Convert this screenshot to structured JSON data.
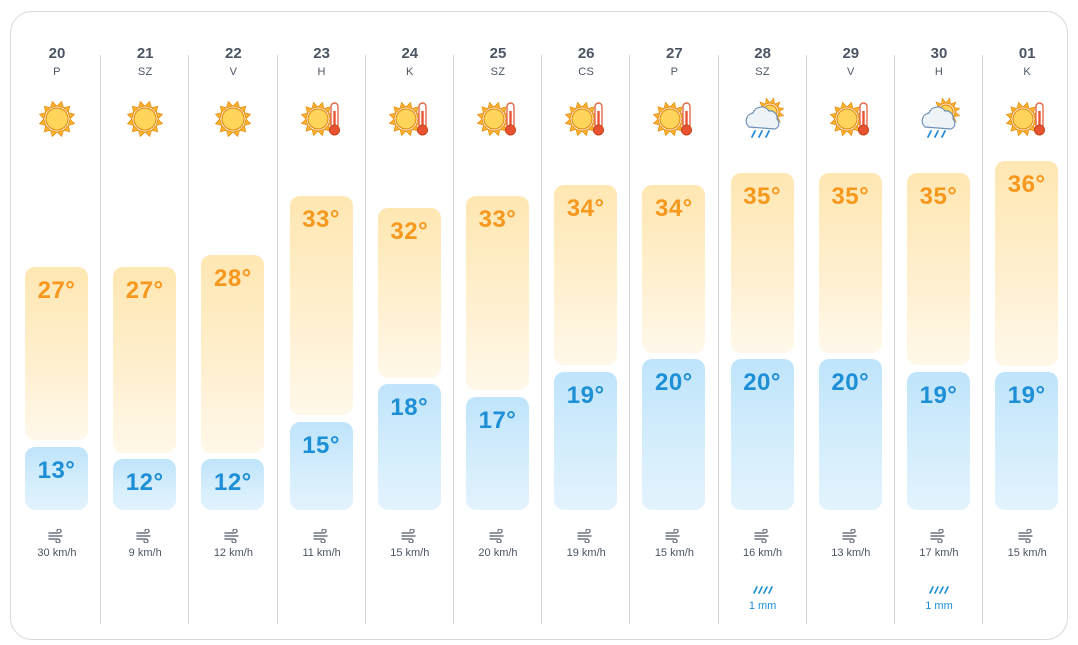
{
  "days": [
    {
      "day": "20",
      "name": "P",
      "icon": "sun-icon",
      "high": "27°",
      "high_val": 27,
      "low": "13°",
      "low_val": 13,
      "wind": "30 km/h",
      "rain": ""
    },
    {
      "day": "21",
      "name": "SZ",
      "icon": "sun-icon",
      "high": "27°",
      "high_val": 27,
      "low": "12°",
      "low_val": 12,
      "wind": "9 km/h",
      "rain": ""
    },
    {
      "day": "22",
      "name": "V",
      "icon": "sun-icon",
      "high": "28°",
      "high_val": 28,
      "low": "12°",
      "low_val": 12,
      "wind": "12 km/h",
      "rain": ""
    },
    {
      "day": "23",
      "name": "H",
      "icon": "sun-hot-icon",
      "high": "33°",
      "high_val": 33,
      "low": "15°",
      "low_val": 15,
      "wind": "11 km/h",
      "rain": ""
    },
    {
      "day": "24",
      "name": "K",
      "icon": "sun-hot-icon",
      "high": "32°",
      "high_val": 32,
      "low": "18°",
      "low_val": 18,
      "wind": "15 km/h",
      "rain": ""
    },
    {
      "day": "25",
      "name": "SZ",
      "icon": "sun-hot-icon",
      "high": "33°",
      "high_val": 33,
      "low": "17°",
      "low_val": 17,
      "wind": "20 km/h",
      "rain": ""
    },
    {
      "day": "26",
      "name": "CS",
      "icon": "sun-hot-icon",
      "high": "34°",
      "high_val": 34,
      "low": "19°",
      "low_val": 19,
      "wind": "19 km/h",
      "rain": ""
    },
    {
      "day": "27",
      "name": "P",
      "icon": "sun-hot-icon",
      "high": "34°",
      "high_val": 34,
      "low": "20°",
      "low_val": 20,
      "wind": "15 km/h",
      "rain": ""
    },
    {
      "day": "28",
      "name": "SZ",
      "icon": "rain-cloud-icon",
      "high": "35°",
      "high_val": 35,
      "low": "20°",
      "low_val": 20,
      "wind": "16 km/h",
      "rain": "1 mm"
    },
    {
      "day": "29",
      "name": "V",
      "icon": "sun-hot-icon",
      "high": "35°",
      "high_val": 35,
      "low": "20°",
      "low_val": 20,
      "wind": "13 km/h",
      "rain": ""
    },
    {
      "day": "30",
      "name": "H",
      "icon": "rain-cloud-icon",
      "high": "35°",
      "high_val": 35,
      "low": "19°",
      "low_val": 19,
      "wind": "17 km/h",
      "rain": "1 mm"
    },
    {
      "day": "01",
      "name": "K",
      "icon": "sun-hot-icon",
      "high": "36°",
      "high_val": 36,
      "low": "19°",
      "low_val": 19,
      "wind": "15 km/h",
      "rain": ""
    }
  ],
  "colors": {
    "high_text": "#f7981d",
    "low_text": "#1d8fd6",
    "text": "#4b5563",
    "rain_text": "#1d8fd6"
  }
}
